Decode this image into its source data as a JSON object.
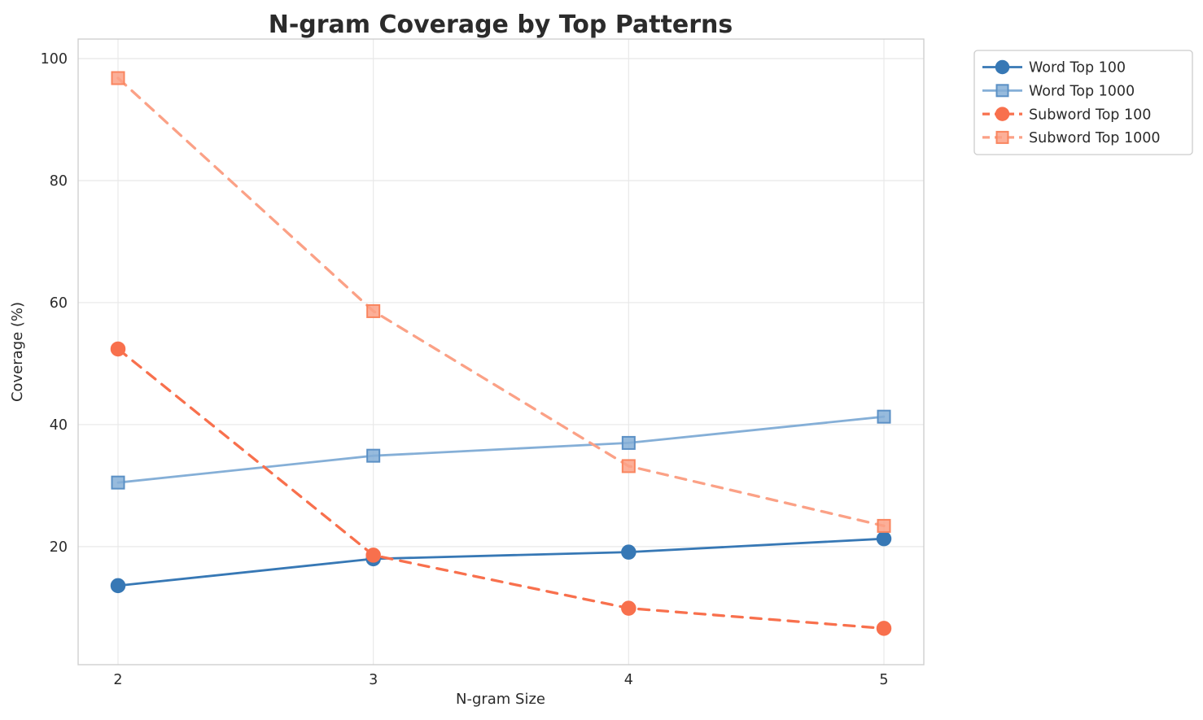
{
  "figure": {
    "background_color": "#ffffff",
    "grid_color": "#e8e8e8",
    "spine_color": "#cfcfcf",
    "text_color": "#2b2b2b"
  },
  "chart_data": {
    "type": "line",
    "title": "N-gram Coverage by Top Patterns",
    "xlabel": "N-gram Size",
    "ylabel": "Coverage (%)",
    "x": [
      2,
      3,
      4,
      5
    ],
    "x_tick_labels": [
      "2",
      "3",
      "4",
      "5"
    ],
    "y_ticks": [
      20,
      40,
      60,
      80,
      100
    ],
    "y_tick_labels": [
      "20",
      "40",
      "60",
      "80",
      "100"
    ],
    "ylim": [
      0.65,
      103.2
    ],
    "grid": true,
    "legend_position": "outside-top-right",
    "series": [
      {
        "name": "Word Top 100",
        "values": [
          13.6,
          18.0,
          19.1,
          21.3
        ],
        "color": "#3778b5",
        "marker_edge": "#3778b5",
        "marker": "circle",
        "line_style": "solid"
      },
      {
        "name": "Word Top 1000",
        "values": [
          30.5,
          34.9,
          37.0,
          41.3
        ],
        "color": "#85afd7",
        "marker_edge": "#5b90c5",
        "marker": "square",
        "line_style": "solid"
      },
      {
        "name": "Subword Top 100",
        "values": [
          52.4,
          18.6,
          9.9,
          6.6
        ],
        "color": "#f8704d",
        "marker_edge": "#f8704d",
        "marker": "circle",
        "line_style": "dashed"
      },
      {
        "name": "Subword Top 1000",
        "values": [
          96.8,
          58.6,
          33.2,
          23.4
        ],
        "color": "#fba186",
        "marker_edge": "#f9855f",
        "marker": "square",
        "line_style": "dashed"
      }
    ]
  }
}
